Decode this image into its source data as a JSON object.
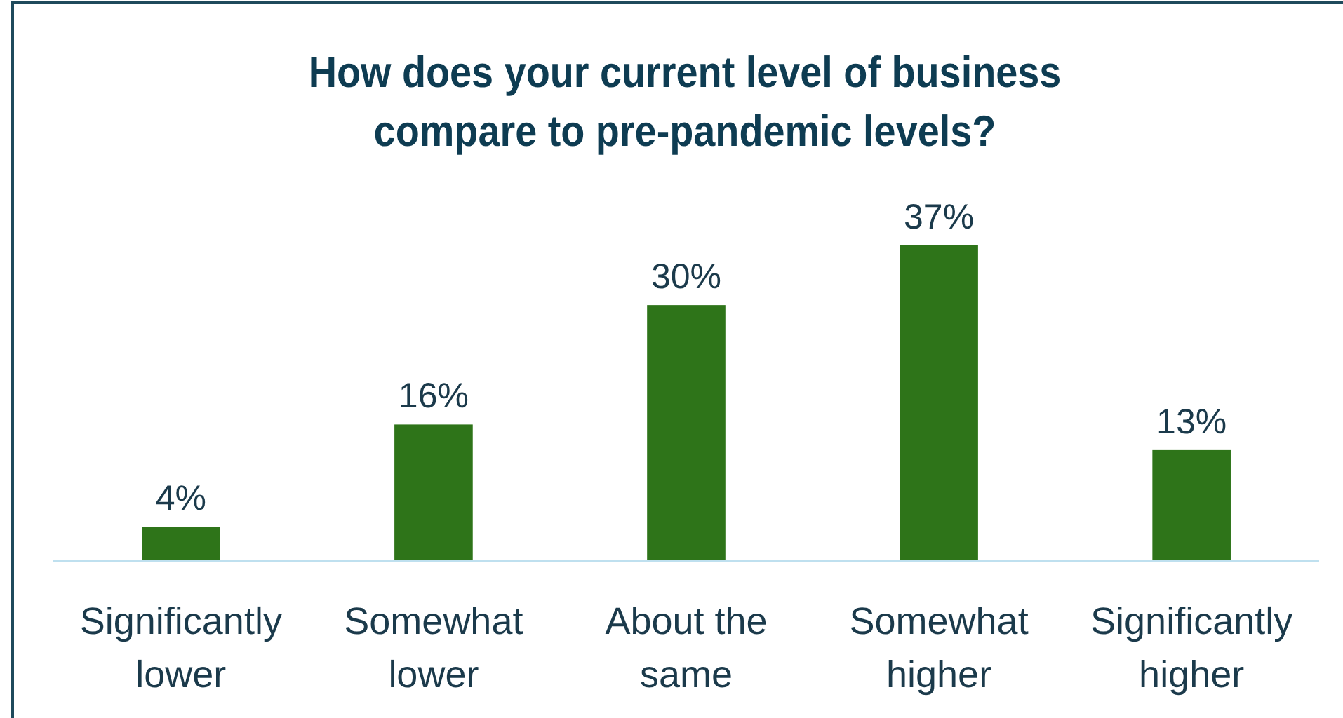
{
  "chart_data": {
    "type": "bar",
    "title": "How does your current level of business compare to pre-pandemic levels?",
    "categories": [
      "Significantly lower",
      "Somewhat lower",
      "About the same",
      "Somewhat higher",
      "Significantly higher"
    ],
    "values": [
      4,
      16,
      30,
      37,
      13
    ],
    "value_labels": [
      "4%",
      "16%",
      "30%",
      "37%",
      "13%"
    ],
    "color": "#2e7419"
  }
}
